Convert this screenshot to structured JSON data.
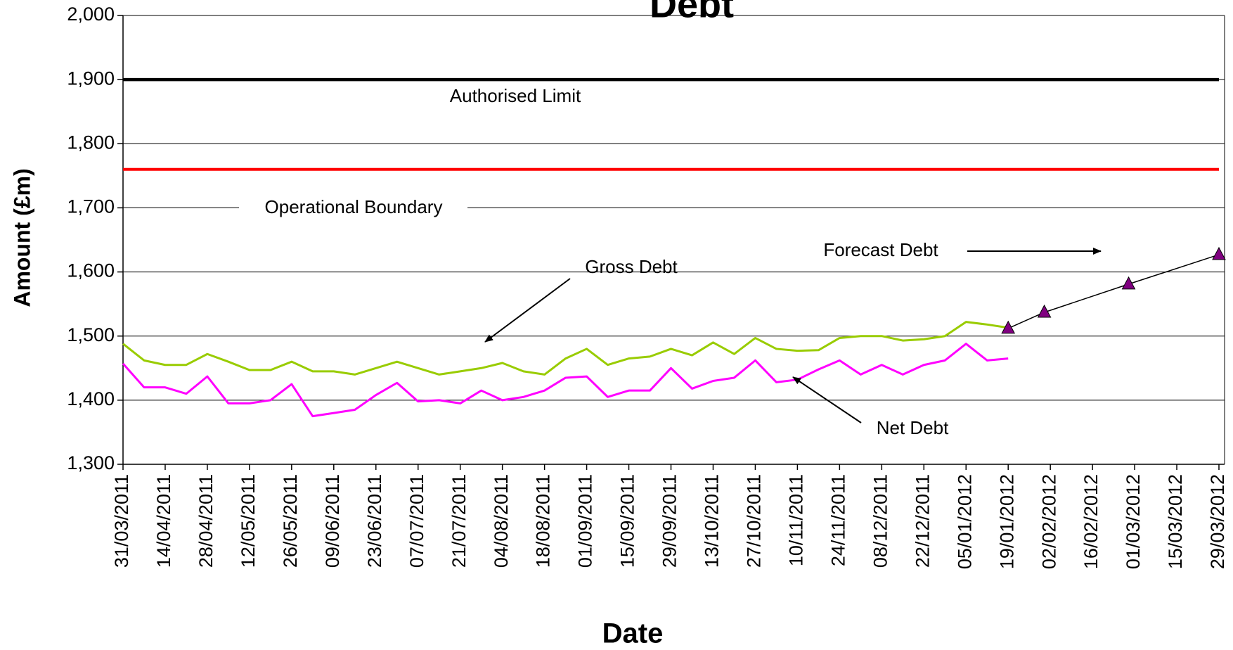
{
  "chart_data": {
    "type": "line",
    "title": "Debt",
    "x_label": "Date",
    "y_label": "Amount (£m)",
    "xlim": [
      "31/03/2011",
      "29/03/2012"
    ],
    "xticks": [
      "31/03/2011",
      "14/04/2011",
      "28/04/2011",
      "12/05/2011",
      "26/05/2011",
      "09/06/2011",
      "23/06/2011",
      "07/07/2011",
      "21/07/2011",
      "04/08/2011",
      "18/08/2011",
      "01/09/2011",
      "15/09/2011",
      "29/09/2011",
      "13/10/2011",
      "27/10/2011",
      "10/11/2011",
      "24/11/2011",
      "08/12/2011",
      "22/12/2011",
      "05/01/2012",
      "19/01/2012",
      "02/02/2012",
      "16/02/2012",
      "01/03/2012",
      "15/03/2012",
      "29/03/2012"
    ],
    "ylim": [
      1300,
      2000
    ],
    "yticks": [
      {
        "value": 1300,
        "label": "1,300"
      },
      {
        "value": 1400,
        "label": "1,400"
      },
      {
        "value": 1500,
        "label": "1,500"
      },
      {
        "value": 1600,
        "label": "1,600"
      },
      {
        "value": 1700,
        "label": "1,700"
      },
      {
        "value": 1800,
        "label": "1,800"
      },
      {
        "value": 1900,
        "label": "1,900"
      },
      {
        "value": 2000,
        "label": "2,000"
      }
    ],
    "grid": true,
    "series": [
      {
        "name": "Authorised Limit",
        "color": "#000000",
        "x": [
          "31/03/2011",
          "29/03/2012"
        ],
        "values": [
          1900,
          1900
        ]
      },
      {
        "name": "Operational Boundary",
        "color": "#ff0000",
        "x": [
          "31/03/2011",
          "29/03/2012"
        ],
        "values": [
          1760,
          1760
        ]
      },
      {
        "name": "Gross Debt",
        "color": "#99cc00",
        "x": [
          "31/03/2011",
          "07/04/2011",
          "14/04/2011",
          "21/04/2011",
          "28/04/2011",
          "05/05/2011",
          "12/05/2011",
          "19/05/2011",
          "26/05/2011",
          "02/06/2011",
          "09/06/2011",
          "16/06/2011",
          "23/06/2011",
          "30/06/2011",
          "07/07/2011",
          "14/07/2011",
          "21/07/2011",
          "28/07/2011",
          "04/08/2011",
          "11/08/2011",
          "18/08/2011",
          "25/08/2011",
          "01/09/2011",
          "08/09/2011",
          "15/09/2011",
          "22/09/2011",
          "29/09/2011",
          "06/10/2011",
          "13/10/2011",
          "20/10/2011",
          "27/10/2011",
          "03/11/2011",
          "10/11/2011",
          "17/11/2011",
          "24/11/2011",
          "01/12/2011",
          "08/12/2011",
          "15/12/2011",
          "22/12/2011",
          "29/12/2011",
          "05/01/2012",
          "12/01/2012",
          "19/01/2012"
        ],
        "values": [
          1488,
          1462,
          1455,
          1455,
          1472,
          1460,
          1447,
          1447,
          1460,
          1445,
          1445,
          1440,
          1450,
          1460,
          1450,
          1440,
          1445,
          1450,
          1458,
          1445,
          1440,
          1465,
          1480,
          1455,
          1465,
          1468,
          1480,
          1470,
          1490,
          1472,
          1497,
          1480,
          1477,
          1478,
          1497,
          1500,
          1500,
          1493,
          1495,
          1500,
          1522,
          1518,
          1513
        ]
      },
      {
        "name": "Net Debt",
        "color": "#ff00ff",
        "x": [
          "31/03/2011",
          "07/04/2011",
          "14/04/2011",
          "21/04/2011",
          "28/04/2011",
          "05/05/2011",
          "12/05/2011",
          "19/05/2011",
          "26/05/2011",
          "02/06/2011",
          "09/06/2011",
          "16/06/2011",
          "23/06/2011",
          "30/06/2011",
          "07/07/2011",
          "14/07/2011",
          "21/07/2011",
          "28/07/2011",
          "04/08/2011",
          "11/08/2011",
          "18/08/2011",
          "25/08/2011",
          "01/09/2011",
          "08/09/2011",
          "15/09/2011",
          "22/09/2011",
          "29/09/2011",
          "06/10/2011",
          "13/10/2011",
          "20/10/2011",
          "27/10/2011",
          "03/11/2011",
          "10/11/2011",
          "17/11/2011",
          "24/11/2011",
          "01/12/2011",
          "08/12/2011",
          "15/12/2011",
          "22/12/2011",
          "29/12/2011",
          "05/01/2012",
          "12/01/2012",
          "19/01/2012"
        ],
        "values": [
          1457,
          1420,
          1420,
          1410,
          1437,
          1395,
          1395,
          1400,
          1425,
          1375,
          1380,
          1385,
          1408,
          1427,
          1398,
          1400,
          1395,
          1415,
          1400,
          1405,
          1415,
          1435,
          1437,
          1405,
          1415,
          1415,
          1450,
          1418,
          1430,
          1435,
          1462,
          1428,
          1432,
          1448,
          1462,
          1440,
          1455,
          1440,
          1455,
          1462,
          1488,
          1462,
          1465
        ]
      },
      {
        "name": "Forecast Debt",
        "color": "#800080",
        "marker": "triangle",
        "x": [
          "19/01/2012",
          "31/01/2012",
          "28/02/2012",
          "29/03/2012"
        ],
        "values": [
          1512,
          1537,
          1581,
          1627
        ]
      }
    ]
  }
}
